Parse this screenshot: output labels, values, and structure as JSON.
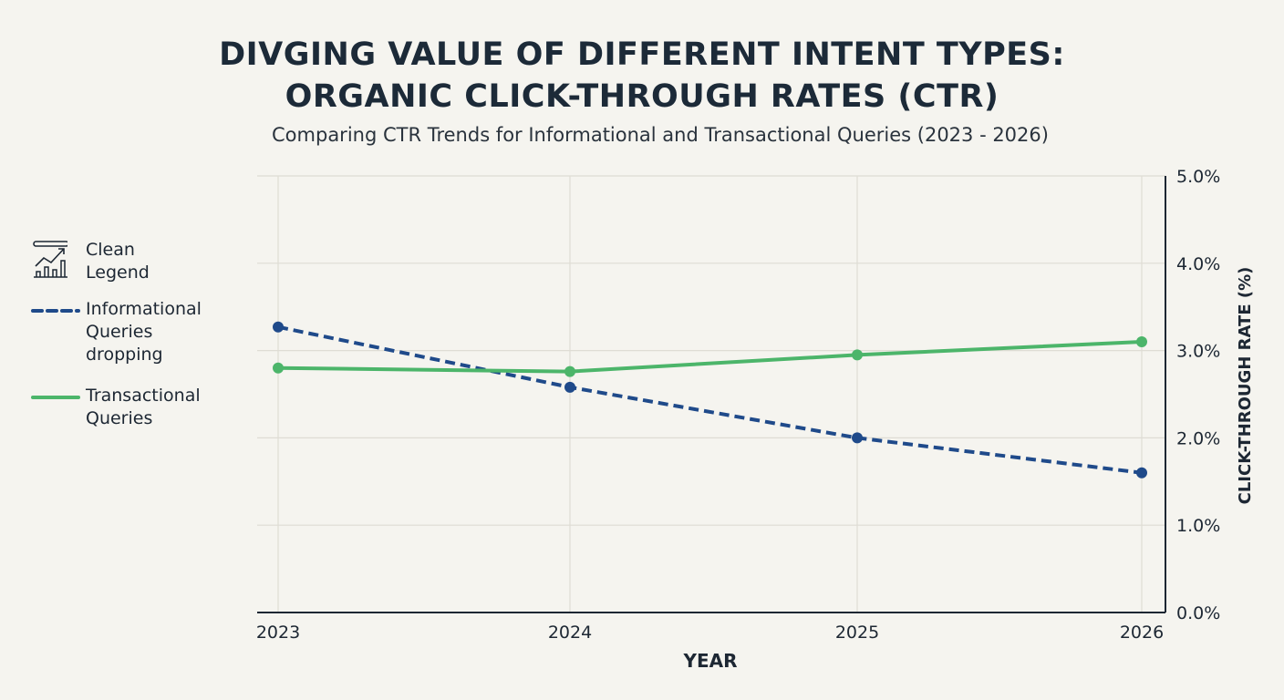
{
  "title_line1": "DIVGING VALUE OF DIFFERENT INTENT TYPES:",
  "title_line2": "ORGANIC CLICK-THROUGH RATES (CTR)",
  "subtitle": "Comparing CTR Trends for Informational and Transactional Queries (2023 - 2026)",
  "legend": {
    "header_icon": "chart-trend-icon",
    "header_line1": "Clean",
    "header_line2": "Legend",
    "items": [
      {
        "lines": [
          "Informational",
          "Queries",
          "dropping"
        ]
      },
      {
        "lines": [
          "Transactional",
          "Queries"
        ]
      }
    ]
  },
  "chart_data": {
    "type": "line",
    "title": "DIVGING VALUE OF DIFFERENT INTENT TYPES: ORGANIC CLICK-THROUGH RATES (CTR)",
    "subtitle": "Comparing CTR Trends for Informational and Transactional Queries (2023 - 2026)",
    "xlabel": "YEAR",
    "ylabel": "CLICK-THROUGH RATE (%)",
    "x": [
      "2023",
      "2024",
      "2025",
      "2026"
    ],
    "ylim": [
      0,
      5
    ],
    "yticks": [
      "0.0%",
      "1.0%",
      "2.0%",
      "3.0%",
      "4.0%",
      "5.0%"
    ],
    "y_axis_side": "right",
    "grid": true,
    "legend_position": "left",
    "series": [
      {
        "name": "Informational Queries dropping",
        "values": [
          3.27,
          2.58,
          2.0,
          1.6
        ],
        "color": "#1f4a8a",
        "style": "dashed"
      },
      {
        "name": "Transactional Queries",
        "values": [
          2.8,
          2.76,
          2.95,
          3.1
        ],
        "color": "#4cb56a",
        "style": "solid"
      }
    ]
  }
}
